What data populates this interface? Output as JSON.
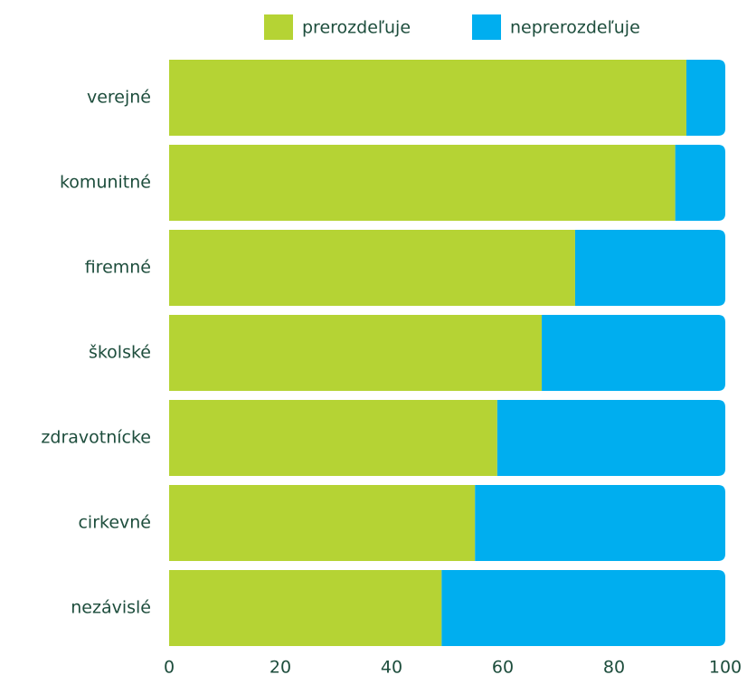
{
  "chart_data": {
    "type": "stacked-bar-horizontal",
    "categories": [
      "verejné",
      "komunitné",
      "firemné",
      "školské",
      "zdravotnícke",
      "cirkevné",
      "nezávislé"
    ],
    "series": [
      {
        "name": "prerozdeľuje",
        "color": "#b5d334",
        "values": [
          93,
          91,
          73,
          67,
          59,
          55,
          49
        ]
      },
      {
        "name": "neprerozdeľuje",
        "color": "#00aeef",
        "values": [
          7,
          9,
          27,
          33,
          41,
          45,
          51
        ]
      }
    ],
    "xlim": [
      0,
      100
    ],
    "xticks": [
      0,
      20,
      40,
      60,
      80,
      100
    ],
    "legend": "top"
  }
}
